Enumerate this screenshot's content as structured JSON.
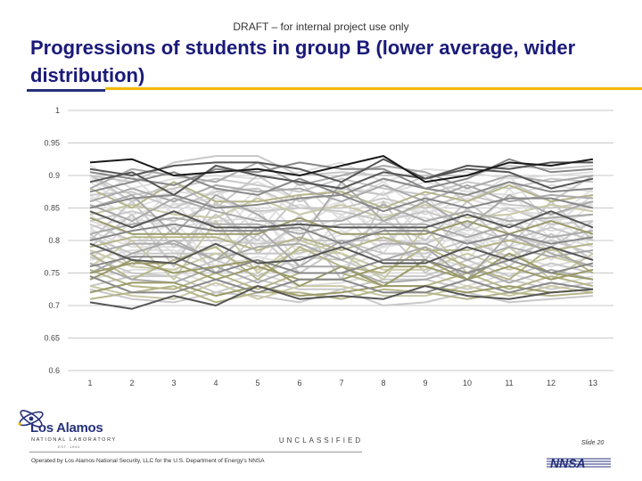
{
  "header": {
    "draft_notice": "DRAFT – for internal project use only",
    "title": "Progressions of students in group B (lower average, wider distribution)"
  },
  "footer": {
    "classification": "UNCLASSIFIED",
    "slide_number": "Slide 20",
    "operated_by": "Operated by Los Alamos National Security, LLC for the U.S. Department of Energy's NNSA",
    "logo_name": "Los Alamos",
    "logo_subtitle": "NATIONAL LABORATORY",
    "logo_est": "EST. 1943",
    "nnsa_mark": "NNSA"
  },
  "colors": {
    "title": "#1a1a7a",
    "rule_blue": "#26317a",
    "rule_gold": "#f2b800",
    "gridline": "#c8c8c8",
    "series_palette": [
      "#1a1a1a",
      "#555555",
      "#888888",
      "#aaaaaa",
      "#c8c8c8",
      "#dedede",
      "#9a9a6a",
      "#b5b58a",
      "#c9c9a8"
    ]
  },
  "chart_data": {
    "type": "line",
    "title": "",
    "xlabel": "",
    "ylabel": "",
    "x": [
      1,
      2,
      3,
      4,
      5,
      6,
      7,
      8,
      9,
      10,
      11,
      12,
      13
    ],
    "ylim": [
      0.6,
      1
    ],
    "yticks": [
      0.6,
      0.65,
      0.7,
      0.75,
      0.8,
      0.85,
      0.9,
      0.95,
      1
    ],
    "ytick_labels": [
      "0.6",
      "0.65",
      "0.7",
      "0.75",
      "0.8",
      "0.85",
      "0.9",
      "0.95",
      "1"
    ],
    "grid": "horizontal",
    "legend": "none",
    "series_count": 60,
    "series": [
      {
        "values": [
          0.92,
          0.925,
          0.9,
          0.905,
          0.91,
          0.9,
          0.915,
          0.93,
          0.89,
          0.9,
          0.92,
          0.915,
          0.925
        ],
        "color": "#1a1a1a"
      },
      {
        "values": [
          0.91,
          0.9,
          0.915,
          0.92,
          0.92,
          0.91,
          0.89,
          0.925,
          0.895,
          0.915,
          0.91,
          0.92,
          0.92
        ],
        "color": "#555555"
      },
      {
        "values": [
          0.9,
          0.89,
          0.92,
          0.93,
          0.93,
          0.9,
          0.905,
          0.9,
          0.9,
          0.9,
          0.915,
          0.91,
          0.915
        ],
        "color": "#c8c8c8"
      },
      {
        "values": [
          0.905,
          0.895,
          0.885,
          0.91,
          0.905,
          0.92,
          0.91,
          0.91,
          0.88,
          0.895,
          0.925,
          0.905,
          0.91
        ],
        "color": "#888888"
      },
      {
        "values": [
          0.88,
          0.91,
          0.9,
          0.89,
          0.92,
          0.885,
          0.9,
          0.915,
          0.905,
          0.88,
          0.9,
          0.89,
          0.9
        ],
        "color": "#aaaaaa"
      },
      {
        "values": [
          0.915,
          0.88,
          0.895,
          0.9,
          0.895,
          0.905,
          0.92,
          0.89,
          0.91,
          0.905,
          0.895,
          0.9,
          0.905
        ],
        "color": "#dedede"
      },
      {
        "values": [
          0.89,
          0.905,
          0.87,
          0.915,
          0.9,
          0.89,
          0.88,
          0.905,
          0.895,
          0.91,
          0.905,
          0.88,
          0.895
        ],
        "color": "#555555"
      },
      {
        "values": [
          0.9,
          0.87,
          0.88,
          0.895,
          0.885,
          0.875,
          0.895,
          0.88,
          0.87,
          0.89,
          0.88,
          0.895,
          0.89
        ],
        "color": "#c8c8c8"
      },
      {
        "values": [
          0.875,
          0.89,
          0.905,
          0.88,
          0.87,
          0.895,
          0.87,
          0.895,
          0.88,
          0.87,
          0.89,
          0.875,
          0.88
        ],
        "color": "#888888"
      },
      {
        "values": [
          0.895,
          0.86,
          0.875,
          0.87,
          0.89,
          0.86,
          0.885,
          0.87,
          0.89,
          0.875,
          0.87,
          0.885,
          0.875
        ],
        "color": "#dedede"
      },
      {
        "values": [
          0.86,
          0.88,
          0.86,
          0.885,
          0.875,
          0.88,
          0.86,
          0.885,
          0.86,
          0.885,
          0.86,
          0.87,
          0.865
        ],
        "color": "#aaaaaa"
      },
      {
        "values": [
          0.88,
          0.85,
          0.89,
          0.86,
          0.86,
          0.87,
          0.875,
          0.85,
          0.875,
          0.86,
          0.885,
          0.86,
          0.87
        ],
        "color": "#b5b58a"
      },
      {
        "values": [
          0.87,
          0.875,
          0.85,
          0.875,
          0.88,
          0.85,
          0.85,
          0.865,
          0.85,
          0.87,
          0.855,
          0.85,
          0.86
        ],
        "color": "#c8c8c8"
      },
      {
        "values": [
          0.85,
          0.865,
          0.87,
          0.85,
          0.855,
          0.865,
          0.87,
          0.845,
          0.865,
          0.85,
          0.865,
          0.865,
          0.85
        ],
        "color": "#888888"
      },
      {
        "values": [
          0.865,
          0.84,
          0.855,
          0.865,
          0.84,
          0.855,
          0.84,
          0.86,
          0.84,
          0.865,
          0.845,
          0.84,
          0.855
        ],
        "color": "#dedede"
      },
      {
        "values": [
          0.84,
          0.855,
          0.84,
          0.835,
          0.865,
          0.84,
          0.855,
          0.835,
          0.855,
          0.835,
          0.84,
          0.855,
          0.845
        ],
        "color": "#c9c9a8"
      },
      {
        "values": [
          0.855,
          0.83,
          0.865,
          0.845,
          0.83,
          0.83,
          0.83,
          0.855,
          0.83,
          0.845,
          0.83,
          0.835,
          0.84
        ],
        "color": "#aaaaaa"
      },
      {
        "values": [
          0.83,
          0.845,
          0.83,
          0.855,
          0.845,
          0.85,
          0.845,
          0.83,
          0.845,
          0.825,
          0.85,
          0.825,
          0.83
        ],
        "color": "#c8c8c8"
      },
      {
        "values": [
          0.845,
          0.82,
          0.845,
          0.82,
          0.82,
          0.825,
          0.82,
          0.82,
          0.82,
          0.84,
          0.82,
          0.845,
          0.82
        ],
        "color": "#555555"
      },
      {
        "values": [
          0.82,
          0.835,
          0.82,
          0.83,
          0.835,
          0.815,
          0.835,
          0.84,
          0.835,
          0.815,
          0.835,
          0.815,
          0.825
        ],
        "color": "#dedede"
      },
      {
        "values": [
          0.835,
          0.81,
          0.81,
          0.81,
          0.81,
          0.835,
          0.81,
          0.81,
          0.81,
          0.83,
          0.81,
          0.83,
          0.81
        ],
        "color": "#9a9a6a"
      },
      {
        "values": [
          0.81,
          0.825,
          0.835,
          0.825,
          0.825,
          0.81,
          0.825,
          0.825,
          0.825,
          0.805,
          0.825,
          0.805,
          0.815
        ],
        "color": "#aaaaaa"
      },
      {
        "values": [
          0.825,
          0.8,
          0.8,
          0.8,
          0.795,
          0.8,
          0.8,
          0.8,
          0.795,
          0.82,
          0.8,
          0.82,
          0.8
        ],
        "color": "#c8c8c8"
      },
      {
        "values": [
          0.8,
          0.815,
          0.825,
          0.815,
          0.815,
          0.82,
          0.795,
          0.815,
          0.815,
          0.795,
          0.81,
          0.795,
          0.805
        ],
        "color": "#888888"
      },
      {
        "values": [
          0.815,
          0.79,
          0.79,
          0.79,
          0.8,
          0.79,
          0.815,
          0.79,
          0.8,
          0.81,
          0.79,
          0.81,
          0.79
        ],
        "color": "#dedede"
      },
      {
        "values": [
          0.79,
          0.805,
          0.805,
          0.805,
          0.785,
          0.805,
          0.785,
          0.805,
          0.785,
          0.785,
          0.8,
          0.785,
          0.795
        ],
        "color": "#b5b58a"
      },
      {
        "values": [
          0.805,
          0.78,
          0.78,
          0.78,
          0.78,
          0.78,
          0.8,
          0.78,
          0.78,
          0.8,
          0.775,
          0.8,
          0.78
        ],
        "color": "#c8c8c8"
      },
      {
        "values": [
          0.78,
          0.795,
          0.795,
          0.77,
          0.79,
          0.795,
          0.77,
          0.795,
          0.795,
          0.77,
          0.79,
          0.775,
          0.785
        ],
        "color": "#aaaaaa"
      },
      {
        "values": [
          0.795,
          0.77,
          0.765,
          0.795,
          0.765,
          0.77,
          0.79,
          0.765,
          0.765,
          0.79,
          0.77,
          0.79,
          0.77
        ],
        "color": "#555555"
      },
      {
        "values": [
          0.77,
          0.785,
          0.785,
          0.76,
          0.775,
          0.76,
          0.76,
          0.78,
          0.775,
          0.76,
          0.78,
          0.76,
          0.775
        ],
        "color": "#dedede"
      },
      {
        "values": [
          0.785,
          0.76,
          0.755,
          0.78,
          0.755,
          0.785,
          0.78,
          0.755,
          0.755,
          0.78,
          0.755,
          0.775,
          0.76
        ],
        "color": "#c9c9a8"
      },
      {
        "values": [
          0.76,
          0.775,
          0.775,
          0.75,
          0.77,
          0.75,
          0.75,
          0.77,
          0.77,
          0.75,
          0.77,
          0.75,
          0.765
        ],
        "color": "#888888"
      },
      {
        "values": [
          0.775,
          0.75,
          0.745,
          0.77,
          0.745,
          0.775,
          0.77,
          0.745,
          0.745,
          0.77,
          0.745,
          0.765,
          0.75
        ],
        "color": "#c8c8c8"
      },
      {
        "values": [
          0.75,
          0.765,
          0.765,
          0.74,
          0.76,
          0.74,
          0.74,
          0.76,
          0.76,
          0.74,
          0.76,
          0.74,
          0.755
        ],
        "color": "#9a9a6a"
      },
      {
        "values": [
          0.765,
          0.74,
          0.735,
          0.76,
          0.735,
          0.76,
          0.76,
          0.735,
          0.74,
          0.76,
          0.735,
          0.755,
          0.74
        ],
        "color": "#aaaaaa"
      },
      {
        "values": [
          0.74,
          0.755,
          0.755,
          0.73,
          0.75,
          0.73,
          0.735,
          0.75,
          0.75,
          0.73,
          0.75,
          0.73,
          0.745
        ],
        "color": "#dedede"
      },
      {
        "values": [
          0.755,
          0.73,
          0.725,
          0.75,
          0.725,
          0.75,
          0.75,
          0.73,
          0.73,
          0.75,
          0.725,
          0.745,
          0.73
        ],
        "color": "#b5b58a"
      },
      {
        "values": [
          0.73,
          0.745,
          0.745,
          0.72,
          0.74,
          0.725,
          0.725,
          0.74,
          0.74,
          0.725,
          0.74,
          0.725,
          0.735
        ],
        "color": "#c8c8c8"
      },
      {
        "values": [
          0.745,
          0.72,
          0.72,
          0.74,
          0.72,
          0.74,
          0.74,
          0.72,
          0.72,
          0.74,
          0.72,
          0.735,
          0.725
        ],
        "color": "#888888"
      },
      {
        "values": [
          0.72,
          0.735,
          0.735,
          0.715,
          0.73,
          0.715,
          0.72,
          0.73,
          0.73,
          0.72,
          0.73,
          0.72,
          0.725
        ],
        "color": "#9a9a6a"
      },
      {
        "values": [
          0.71,
          0.72,
          0.73,
          0.705,
          0.72,
          0.72,
          0.71,
          0.725,
          0.72,
          0.71,
          0.72,
          0.715,
          0.72
        ],
        "color": "#b5b58a"
      },
      {
        "values": [
          0.705,
          0.695,
          0.715,
          0.7,
          0.73,
          0.71,
          0.715,
          0.71,
          0.73,
          0.715,
          0.71,
          0.72,
          0.725
        ],
        "color": "#555555"
      },
      {
        "values": [
          0.73,
          0.715,
          0.71,
          0.735,
          0.71,
          0.73,
          0.73,
          0.715,
          0.715,
          0.73,
          0.715,
          0.73,
          0.72
        ],
        "color": "#c9c9a8"
      },
      {
        "values": [
          0.725,
          0.71,
          0.705,
          0.72,
          0.715,
          0.705,
          0.725,
          0.7,
          0.705,
          0.72,
          0.705,
          0.71,
          0.715
        ],
        "color": "#c8c8c8"
      },
      {
        "values": [
          0.86,
          0.9,
          0.84,
          0.88,
          0.81,
          0.89,
          0.83,
          0.875,
          0.8,
          0.86,
          0.9,
          0.82,
          0.87
        ],
        "color": "#dedede"
      },
      {
        "values": [
          0.82,
          0.77,
          0.86,
          0.79,
          0.85,
          0.76,
          0.84,
          0.78,
          0.87,
          0.8,
          0.83,
          0.77,
          0.82
        ],
        "color": "#dedede"
      },
      {
        "values": [
          0.79,
          0.84,
          0.76,
          0.86,
          0.78,
          0.83,
          0.74,
          0.86,
          0.77,
          0.85,
          0.79,
          0.86,
          0.8
        ],
        "color": "#c8c8c8"
      },
      {
        "values": [
          0.87,
          0.82,
          0.88,
          0.8,
          0.87,
          0.81,
          0.88,
          0.79,
          0.86,
          0.8,
          0.88,
          0.8,
          0.86
        ],
        "color": "#e4e4e4"
      },
      {
        "values": [
          0.76,
          0.8,
          0.74,
          0.83,
          0.75,
          0.8,
          0.78,
          0.74,
          0.82,
          0.75,
          0.79,
          0.74,
          0.78
        ],
        "color": "#c9c9a8"
      },
      {
        "values": [
          0.84,
          0.79,
          0.83,
          0.76,
          0.84,
          0.78,
          0.81,
          0.84,
          0.77,
          0.83,
          0.76,
          0.84,
          0.79
        ],
        "color": "#e4e4e4"
      },
      {
        "values": [
          0.8,
          0.86,
          0.79,
          0.84,
          0.8,
          0.87,
          0.79,
          0.83,
          0.8,
          0.86,
          0.81,
          0.79,
          0.83
        ],
        "color": "#c8c8c8"
      },
      {
        "values": [
          0.75,
          0.78,
          0.8,
          0.77,
          0.82,
          0.76,
          0.8,
          0.77,
          0.79,
          0.74,
          0.81,
          0.78,
          0.76
        ],
        "color": "#aaaaaa"
      },
      {
        "values": [
          0.83,
          0.81,
          0.77,
          0.84,
          0.79,
          0.82,
          0.86,
          0.8,
          0.83,
          0.81,
          0.77,
          0.83,
          0.84
        ],
        "color": "#dedede"
      },
      {
        "values": [
          0.89,
          0.85,
          0.87,
          0.82,
          0.88,
          0.84,
          0.86,
          0.89,
          0.84,
          0.88,
          0.85,
          0.83,
          0.88
        ],
        "color": "#e4e4e4"
      },
      {
        "values": [
          0.78,
          0.74,
          0.77,
          0.79,
          0.74,
          0.79,
          0.76,
          0.75,
          0.79,
          0.76,
          0.74,
          0.79,
          0.75
        ],
        "color": "#b5b58a"
      },
      {
        "values": [
          0.85,
          0.87,
          0.81,
          0.87,
          0.84,
          0.8,
          0.89,
          0.83,
          0.86,
          0.82,
          0.87,
          0.84,
          0.86
        ],
        "color": "#aaaaaa"
      },
      {
        "values": [
          0.81,
          0.76,
          0.82,
          0.75,
          0.81,
          0.75,
          0.79,
          0.82,
          0.75,
          0.8,
          0.76,
          0.81,
          0.77
        ],
        "color": "#c8c8c8"
      },
      {
        "values": [
          0.77,
          0.83,
          0.78,
          0.82,
          0.76,
          0.84,
          0.77,
          0.79,
          0.85,
          0.77,
          0.84,
          0.78,
          0.81
        ],
        "color": "#dedede"
      },
      {
        "values": [
          0.9,
          0.86,
          0.89,
          0.85,
          0.9,
          0.86,
          0.88,
          0.87,
          0.9,
          0.86,
          0.89,
          0.86,
          0.9
        ],
        "color": "#c8c8c8"
      },
      {
        "values": [
          0.74,
          0.77,
          0.75,
          0.76,
          0.77,
          0.73,
          0.76,
          0.73,
          0.77,
          0.74,
          0.78,
          0.75,
          0.74
        ],
        "color": "#9a9a6a"
      }
    ]
  }
}
